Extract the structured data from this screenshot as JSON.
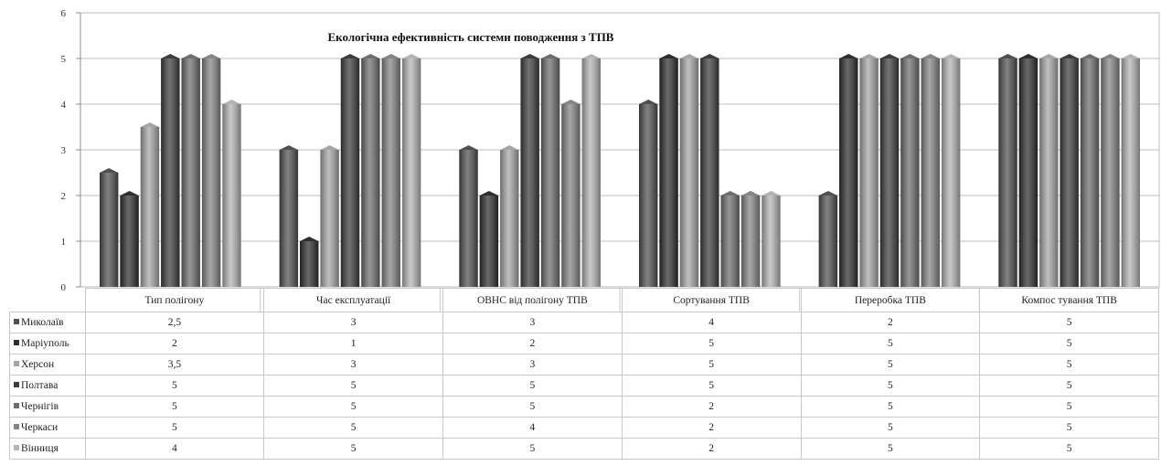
{
  "chart_data": {
    "type": "bar",
    "title": "Екологічна ефективність системи поводження з ТПВ",
    "categories": [
      "Тип полігону",
      "Час експлуатації",
      "ОВНС від полігону ТПВ",
      "Сортування ТПВ",
      "Переробка ТПВ",
      "Компос тування ТПВ"
    ],
    "series": [
      {
        "name": "Миколаїв",
        "values": [
          2.5,
          3,
          3,
          4,
          2,
          5
        ],
        "color": "#505050",
        "display": [
          "2,5",
          "3",
          "3",
          "4",
          "2",
          "5"
        ]
      },
      {
        "name": "Маріуполь",
        "values": [
          2,
          1,
          2,
          5,
          5,
          5
        ],
        "color": "#2e2e2e",
        "display": [
          "2",
          "1",
          "2",
          "5",
          "5",
          "5"
        ]
      },
      {
        "name": "Херсон",
        "values": [
          3.5,
          3,
          3,
          5,
          5,
          5
        ],
        "color": "#a6a6a6",
        "display": [
          "3,5",
          "3",
          "3",
          "5",
          "5",
          "5"
        ]
      },
      {
        "name": "Полтава",
        "values": [
          5,
          5,
          5,
          5,
          5,
          5
        ],
        "color": "#3d3d3d",
        "display": [
          "5",
          "5",
          "5",
          "5",
          "5",
          "5"
        ]
      },
      {
        "name": "Чернігів",
        "values": [
          5,
          5,
          5,
          2,
          5,
          5
        ],
        "color": "#6e6e6e",
        "display": [
          "5",
          "5",
          "5",
          "2",
          "5",
          "5"
        ]
      },
      {
        "name": "Черкаси",
        "values": [
          5,
          5,
          4,
          2,
          5,
          5
        ],
        "color": "#858585",
        "display": [
          "5",
          "5",
          "4",
          "2",
          "5",
          "5"
        ]
      },
      {
        "name": "Вінниця",
        "values": [
          4,
          5,
          5,
          2,
          5,
          5
        ],
        "color": "#b4b4b4",
        "display": [
          "4",
          "5",
          "5",
          "2",
          "5",
          "5"
        ]
      }
    ],
    "y_ticks": [
      "0",
      "1",
      "2",
      "3",
      "4",
      "5",
      "6"
    ],
    "ylim": [
      0,
      6
    ],
    "grid": true,
    "legend": "data-table"
  }
}
